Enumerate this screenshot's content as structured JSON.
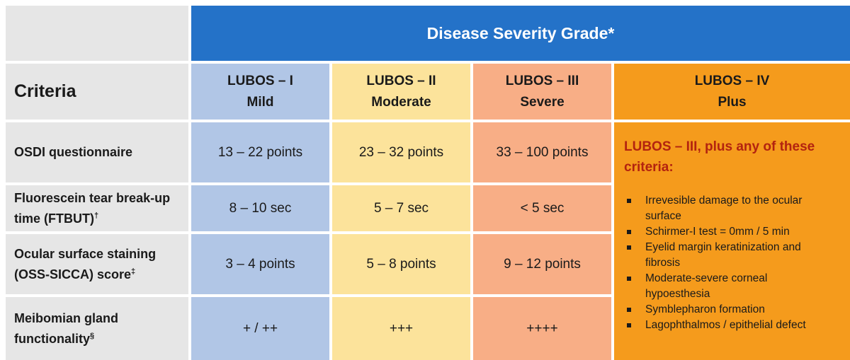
{
  "header": {
    "title": "Disease Severity Grade*",
    "criteria_label": "Criteria"
  },
  "grades": [
    {
      "name": "LUBOS – I",
      "level": "Mild"
    },
    {
      "name": "LUBOS – II",
      "level": "Moderate"
    },
    {
      "name": "LUBOS – III",
      "level": "Severe"
    },
    {
      "name": "LUBOS – IV",
      "level": "Plus"
    }
  ],
  "rows": [
    {
      "label": "OSDI questionnaire",
      "label_line2": "",
      "sup": "",
      "values": [
        "13 – 22 points",
        "23 – 32 points",
        "33 – 100 points"
      ]
    },
    {
      "label": "Fluorescein tear break-up",
      "label_line2": "time (FTBUT)",
      "sup": "†",
      "values": [
        "8 – 10 sec",
        "5 – 7 sec",
        "< 5 sec"
      ]
    },
    {
      "label": "Ocular surface staining",
      "label_line2": "(OSS-SICCA) score",
      "sup": "‡",
      "values": [
        "3 – 4 points",
        "5 – 8 points",
        "9 – 12 points"
      ]
    },
    {
      "label": "Meibomian gland",
      "label_line2": "functionality",
      "sup": "§",
      "values": [
        "+ / ++",
        "+++",
        "++++"
      ]
    }
  ],
  "plus": {
    "title_line1": "LUBOS – III, plus any of these",
    "title_line2": "criteria:",
    "items": [
      {
        "line1": "Irrevesible damage to the ocular",
        "line2": "surface"
      },
      {
        "line1": "Schirmer-I test = 0mm / 5 min",
        "line2": ""
      },
      {
        "line1": "Eyelid margin keratinization and",
        "line2": "fibrosis"
      },
      {
        "line1": "Moderate-severe corneal",
        "line2": "hypoesthesia"
      },
      {
        "line1": "Symblepharon formation",
        "line2": ""
      },
      {
        "line1": "Lagophthalmos / epithelial defect",
        "line2": ""
      }
    ]
  },
  "colors": {
    "header_blue": "#2472c8",
    "grade1": "#b1c6e6",
    "grade2": "#fce39b",
    "grade3": "#f8ae86",
    "grade4": "#f59b1c",
    "criteria_bg": "#e6e6e6",
    "plus_title": "#b3230f"
  }
}
